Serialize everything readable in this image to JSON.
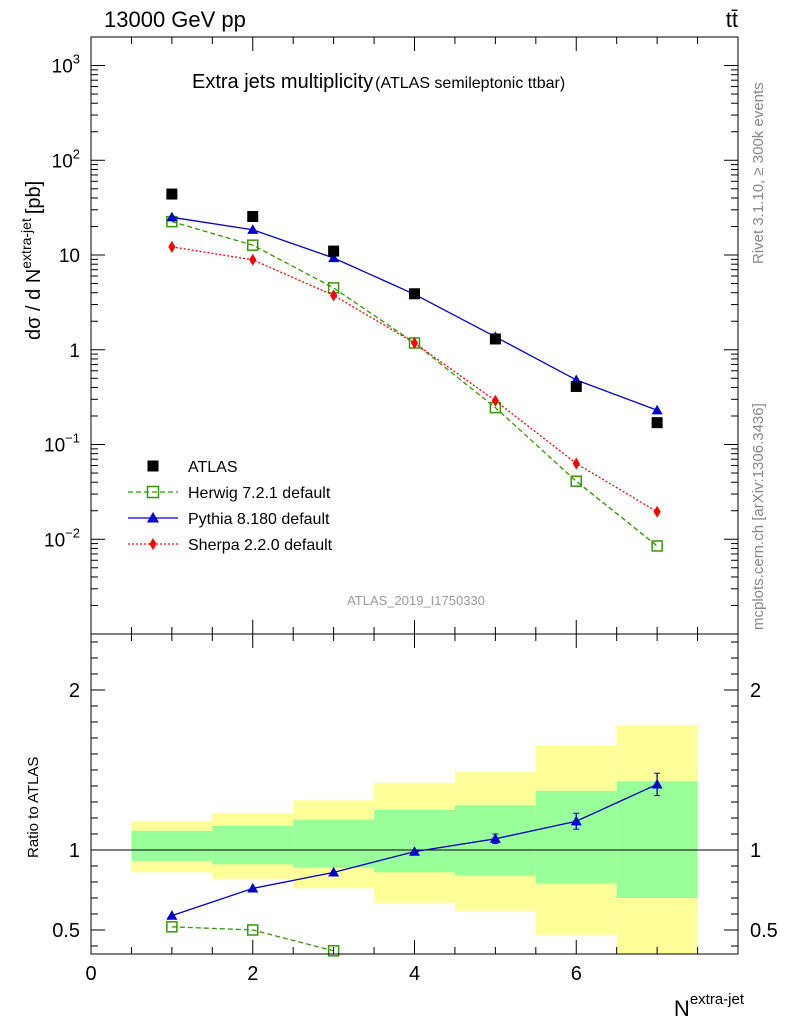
{
  "header": {
    "energy_label": "13000 GeV pp",
    "process_label": "tt̄"
  },
  "side_labels": {
    "rivet": "Rivet 3.1.10, ≥ 300k events",
    "mcplots": "mcplots.cern.ch [arXiv:1306.3436]"
  },
  "chart_data": {
    "type": "line",
    "title": "Extra jets multiplicity",
    "subtitle": "(ATLAS semileptonic ttbar)",
    "analysis_label": "ATLAS_2019_I1750330",
    "x": [
      1,
      2,
      3,
      4,
      5,
      6,
      7
    ],
    "xlabel_base": "N",
    "xlabel_sup": "extra-jet",
    "xlim": [
      0,
      8
    ],
    "x_ticks": [
      0,
      2,
      4,
      6
    ],
    "main_panel": {
      "yscale": "log",
      "ylim": [
        0.001,
        2000
      ],
      "ylabel_prefix": "dσ / d N",
      "ylabel_sup": "extra-jet",
      "ylabel_suffix": "[pb]",
      "y_tick_labels": [
        {
          "value": 1000,
          "base": "10",
          "exp": "3"
        },
        {
          "value": 100,
          "base": "10",
          "exp": "2"
        },
        {
          "value": 10,
          "base": "10",
          "exp": ""
        },
        {
          "value": 1,
          "base": "1",
          "exp": ""
        },
        {
          "value": 0.1,
          "base": "10",
          "exp": "−1"
        },
        {
          "value": 0.01,
          "base": "10",
          "exp": "−2"
        }
      ],
      "series": [
        {
          "name": "ATLAS",
          "color": "#000000",
          "marker": "square",
          "line": "none",
          "values": [
            44,
            25.5,
            11,
            3.9,
            1.3,
            0.41,
            0.17
          ]
        },
        {
          "name": "Herwig 7.2.1 default",
          "color": "#339900",
          "marker": "open-square",
          "line": "dashed",
          "values": [
            22.5,
            12.7,
            4.5,
            1.18,
            0.245,
            0.041,
            0.0085
          ]
        },
        {
          "name": "Pythia 8.180 default",
          "color": "#0000cc",
          "marker": "triangle",
          "line": "solid",
          "values": [
            25,
            18.5,
            9.3,
            3.85,
            1.37,
            0.48,
            0.23
          ]
        },
        {
          "name": "Sherpa 2.2.0 default",
          "color": "#ff0000",
          "marker": "diamond",
          "line": "dotted",
          "values": [
            12.2,
            8.9,
            3.75,
            1.18,
            0.29,
            0.063,
            0.0195
          ]
        }
      ]
    },
    "ratio_panel": {
      "ylabel": "Ratio to ATLAS",
      "ylim": [
        0.35,
        2.35
      ],
      "y_tick_labels": [
        {
          "value": 2,
          "label": "2"
        },
        {
          "value": 1,
          "label": "1"
        },
        {
          "value": 0.5,
          "label": "0.5"
        }
      ],
      "bands": [
        {
          "x0": 0.5,
          "x1": 1.5,
          "green": [
            0.93,
            1.12
          ],
          "yellow": [
            0.86,
            1.18
          ]
        },
        {
          "x0": 1.5,
          "x1": 2.5,
          "green": [
            0.91,
            1.15
          ],
          "yellow": [
            0.82,
            1.23
          ]
        },
        {
          "x0": 2.5,
          "x1": 3.5,
          "green": [
            0.89,
            1.19
          ],
          "yellow": [
            0.76,
            1.31
          ]
        },
        {
          "x0": 3.5,
          "x1": 4.5,
          "green": [
            0.86,
            1.25
          ],
          "yellow": [
            0.67,
            1.42
          ]
        },
        {
          "x0": 4.5,
          "x1": 5.5,
          "green": [
            0.84,
            1.28
          ],
          "yellow": [
            0.62,
            1.49
          ]
        },
        {
          "x0": 5.5,
          "x1": 6.5,
          "green": [
            0.79,
            1.37
          ],
          "yellow": [
            0.47,
            1.65
          ]
        },
        {
          "x0": 6.5,
          "x1": 7.5,
          "green": [
            0.7,
            1.43
          ],
          "yellow": [
            0.35,
            1.78
          ]
        }
      ],
      "reference_line": 1,
      "series": [
        {
          "name": "Herwig 7.2.1 default",
          "x": [
            1,
            2,
            3
          ],
          "values": [
            0.52,
            0.5,
            0.37
          ],
          "errors": [
            0,
            0,
            0
          ]
        },
        {
          "name": "Pythia 8.180 default",
          "x": [
            1,
            2,
            3,
            4,
            5,
            6,
            7
          ],
          "values": [
            0.59,
            0.76,
            0.86,
            0.99,
            1.07,
            1.18,
            1.41
          ],
          "errors": [
            0,
            0,
            0,
            0,
            0.03,
            0.05,
            0.07
          ]
        }
      ]
    }
  }
}
